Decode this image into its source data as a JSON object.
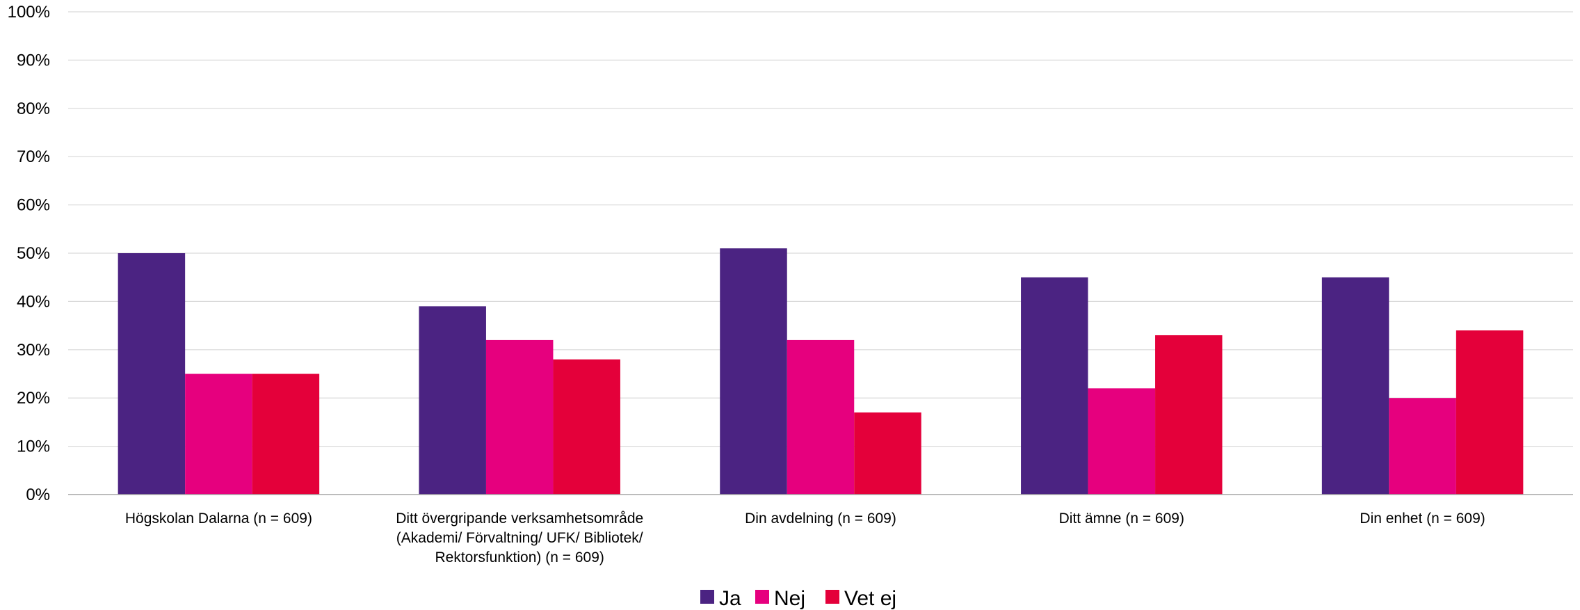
{
  "chart_data": {
    "type": "bar",
    "title": "",
    "xlabel": "",
    "ylabel": "",
    "ylim": [
      0,
      100
    ],
    "y_tick_step": 10,
    "y_tick_suffix": "%",
    "grid": true,
    "legend_position": "bottom-center",
    "categories": [
      [
        "Högskolan Dalarna (n = 609)"
      ],
      [
        "Ditt övergripande verksamhetsområde",
        "(Akademi/ Förvaltning/ UFK/ Bibliotek/",
        "Rektorsfunktion) (n = 609)"
      ],
      [
        "Din avdelning (n = 609)"
      ],
      [
        "Ditt ämne (n = 609)"
      ],
      [
        "Din enhet (n = 609)"
      ]
    ],
    "series": [
      {
        "name": "Ja",
        "color": "#4B2382",
        "values": [
          50,
          39,
          51,
          45,
          45
        ]
      },
      {
        "name": "Nej",
        "color": "#E6007E",
        "values": [
          25,
          32,
          32,
          22,
          20
        ]
      },
      {
        "name": "Vet ej",
        "color": "#E4003A",
        "values": [
          25,
          28,
          17,
          33,
          34
        ]
      }
    ]
  }
}
